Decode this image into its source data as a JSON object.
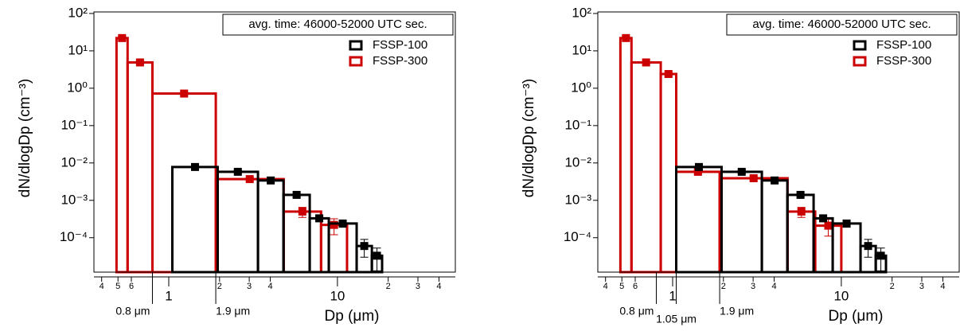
{
  "chart_data": [
    {
      "type": "histogram",
      "xlabel": "Dp (μm)",
      "ylabel": "dN/dlogDp (cm⁻³)",
      "xscale": "log",
      "yscale": "log",
      "xlim": [
        0.36,
        50
      ],
      "ylim": [
        1.2e-05,
        110
      ],
      "xticks": [
        {
          "value": 0.4,
          "label": "4"
        },
        {
          "value": 0.5,
          "label": "5"
        },
        {
          "value": 0.6,
          "label": "6"
        },
        1,
        {
          "value": 2,
          "label": "2"
        },
        {
          "value": 3,
          "label": "3"
        },
        {
          "value": 4,
          "label": "4"
        },
        10,
        {
          "value": 20,
          "label": "2"
        },
        {
          "value": 30,
          "label": "3"
        },
        {
          "value": 40,
          "label": "4"
        }
      ],
      "yticks": [
        {
          "value": 100,
          "label": "10²"
        },
        {
          "value": 10,
          "label": "10¹"
        },
        {
          "value": 1,
          "label": "10⁰"
        },
        {
          "value": 0.1,
          "label": "10⁻¹"
        },
        {
          "value": 0.01,
          "label": "10⁻²"
        },
        {
          "value": 0.001,
          "label": "10⁻³"
        },
        {
          "value": 0.0001,
          "label": "10⁻⁴"
        }
      ],
      "annotation_box": "avg. time: 46000-52000 UTC sec.",
      "legend": "upper right",
      "annotations": [
        {
          "x": 0.8,
          "text": "0.8 μm"
        },
        {
          "x": 1.9,
          "text": "1.9 μm"
        }
      ],
      "series": [
        {
          "name": "FSSP-300",
          "color": "#cc0000",
          "bins": [
            0.49,
            0.57,
            0.8,
            1.9,
            4.8,
            8.0,
            11.4
          ],
          "values": [
            22,
            4.9,
            0.72,
            0.0037,
            0.0005,
            0.00022
          ],
          "errors": [
            3,
            0.6,
            0.08,
            0.0004,
            0.00015,
            0.0001
          ]
        },
        {
          "name": "FSSP-100",
          "color": "#000000",
          "bins": [
            1.05,
            1.95,
            3.38,
            4.79,
            6.85,
            8.89,
            13,
            16,
            18.4
          ],
          "values": [
            0.0078,
            0.0058,
            0.0034,
            0.0014,
            0.00033,
            0.00024,
            6e-05,
            3.3e-05
          ],
          "errors": [
            0.0008,
            0.0006,
            0.0004,
            0.0002,
            6e-05,
            5e-05,
            3e-05,
            2e-05
          ]
        }
      ]
    },
    {
      "type": "histogram",
      "xlabel": "Dp (μm)",
      "ylabel": "dN/dlogDp (cm⁻³)",
      "xscale": "log",
      "yscale": "log",
      "xlim": [
        0.36,
        50
      ],
      "ylim": [
        1.2e-05,
        110
      ],
      "xticks": [
        {
          "value": 0.4,
          "label": "4"
        },
        {
          "value": 0.5,
          "label": "5"
        },
        {
          "value": 0.6,
          "label": "6"
        },
        1,
        {
          "value": 2,
          "label": "2"
        },
        {
          "value": 3,
          "label": "3"
        },
        {
          "value": 4,
          "label": "4"
        },
        10,
        {
          "value": 20,
          "label": "2"
        },
        {
          "value": 30,
          "label": "3"
        },
        {
          "value": 40,
          "label": "4"
        }
      ],
      "yticks": [
        {
          "value": 100,
          "label": "10²"
        },
        {
          "value": 10,
          "label": "10¹"
        },
        {
          "value": 1,
          "label": "10⁰"
        },
        {
          "value": 0.1,
          "label": "10⁻¹"
        },
        {
          "value": 0.01,
          "label": "10⁻²"
        },
        {
          "value": 0.001,
          "label": "10⁻³"
        },
        {
          "value": 0.0001,
          "label": "10⁻⁴"
        }
      ],
      "annotation_box": "avg. time: 46000-52000 UTC sec.",
      "legend": "upper right",
      "annotations": [
        {
          "x": 0.8,
          "text": "0.8 μm"
        },
        {
          "x": 1.05,
          "text": "1.05 μm"
        },
        {
          "x": 1.9,
          "text": "1.9 μm"
        }
      ],
      "series": [
        {
          "name": "FSSP-300",
          "color": "#cc0000",
          "bins": [
            0.49,
            0.57,
            0.85,
            1.05,
            1.9,
            4.8,
            7.0,
            10
          ],
          "values": [
            22,
            4.9,
            2.4,
            0.0058,
            0.0039,
            0.0005,
            0.00021
          ],
          "errors": [
            3,
            0.6,
            0.3,
            0.0007,
            0.0005,
            0.00015,
            0.0001
          ]
        },
        {
          "name": "FSSP-100",
          "color": "#000000",
          "bins": [
            1.05,
            1.95,
            3.38,
            4.79,
            6.85,
            8.89,
            13,
            16,
            18.4
          ],
          "values": [
            0.0078,
            0.0058,
            0.0034,
            0.0014,
            0.00033,
            0.00024,
            6e-05,
            3.3e-05
          ],
          "errors": [
            0.0008,
            0.0006,
            0.0004,
            0.0002,
            6e-05,
            5e-05,
            3e-05,
            2e-05
          ]
        }
      ]
    }
  ]
}
